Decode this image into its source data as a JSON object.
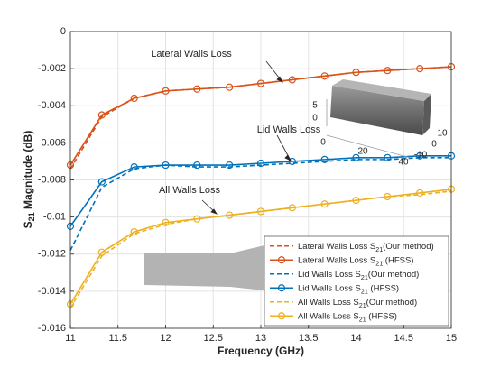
{
  "chart_data": {
    "type": "line",
    "xlabel": "Frequency (GHz)",
    "ylabel": "S21 Magnitude (dB)",
    "x": [
      11,
      11.33,
      11.67,
      12,
      12.33,
      12.67,
      13,
      13.33,
      13.67,
      14,
      14.33,
      14.67,
      15
    ],
    "series": [
      {
        "name": "Lateral Walls Loss S21(Our method)",
        "color": "#d95319",
        "style": "dashed",
        "marker": false,
        "values": [
          -0.0074,
          -0.0046,
          -0.0036,
          -0.0032,
          -0.0031,
          -0.003,
          -0.0028,
          -0.0026,
          -0.0024,
          -0.0022,
          -0.0021,
          -0.002,
          -0.0019
        ]
      },
      {
        "name": "Lateral Walls Loss S21 (HFSS)",
        "color": "#d95319",
        "style": "solid",
        "marker": true,
        "values": [
          -0.0072,
          -0.0045,
          -0.0036,
          -0.0032,
          -0.0031,
          -0.003,
          -0.0028,
          -0.0026,
          -0.0024,
          -0.0022,
          -0.0021,
          -0.002,
          -0.0019
        ]
      },
      {
        "name": "Lid Walls Loss S21(Our method)",
        "color": "#0072bd",
        "style": "dashed",
        "marker": false,
        "values": [
          -0.0118,
          -0.0084,
          -0.0074,
          -0.0072,
          -0.0073,
          -0.0073,
          -0.0072,
          -0.0071,
          -0.007,
          -0.0069,
          -0.0069,
          -0.0068,
          -0.0068
        ]
      },
      {
        "name": "Lid Walls Loss S21 (HFSS)",
        "color": "#0072bd",
        "style": "solid",
        "marker": true,
        "values": [
          -0.0105,
          -0.0081,
          -0.0073,
          -0.0072,
          -0.0072,
          -0.0072,
          -0.0071,
          -0.007,
          -0.0069,
          -0.0068,
          -0.0068,
          -0.0067,
          -0.0067
        ]
      },
      {
        "name": "All Walls Loss S21(Our method)",
        "color": "#edb120",
        "style": "dashed",
        "marker": false,
        "values": [
          -0.0149,
          -0.0121,
          -0.0109,
          -0.0104,
          -0.0101,
          -0.0099,
          -0.0097,
          -0.0095,
          -0.0093,
          -0.0091,
          -0.0089,
          -0.0088,
          -0.0086
        ]
      },
      {
        "name": "All Walls Loss S21 (HFSS)",
        "color": "#edb120",
        "style": "solid",
        "marker": true,
        "values": [
          -0.0147,
          -0.0119,
          -0.0108,
          -0.0103,
          -0.0101,
          -0.0099,
          -0.0097,
          -0.0095,
          -0.0093,
          -0.0091,
          -0.0089,
          -0.0087,
          -0.0085
        ]
      }
    ],
    "xlim": [
      11,
      15
    ],
    "xticks": [
      11,
      11.5,
      12,
      12.5,
      13,
      13.5,
      14,
      14.5,
      15
    ],
    "ylim": [
      -0.016,
      0
    ],
    "yticks": [
      -0.016,
      -0.014,
      -0.012,
      -0.01,
      -0.008,
      -0.006,
      -0.004,
      -0.002,
      0
    ],
    "grid": true,
    "legend": "lower right",
    "annotations": [
      "Lateral Walls Loss",
      "Lid Walls Loss",
      "All Walls Loss"
    ],
    "inset_labels": [
      "5",
      "0",
      "0",
      "20",
      "40",
      "10",
      "0",
      "-10"
    ]
  }
}
